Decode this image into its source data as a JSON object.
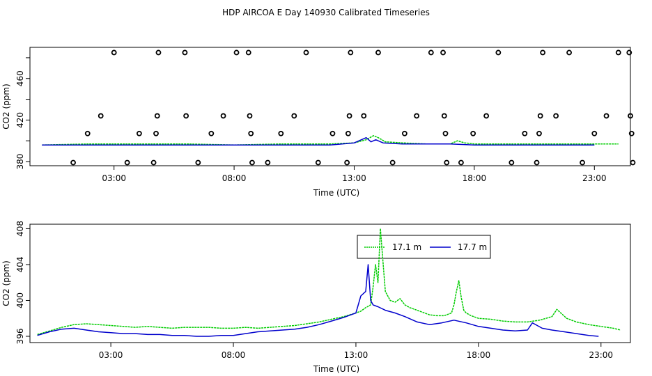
{
  "title": "HDP AIRCOA E  Day 140930  Calibrated Timeseries",
  "colors": {
    "green": "#00cc00",
    "blue": "#0000cc",
    "axis": "#000000"
  },
  "chart_data": [
    {
      "type": "scatter+line",
      "ylabel": "CO2 (ppm)",
      "xlabel": "Time (UTC)",
      "xlim": [
        -0.5,
        24.5
      ],
      "ylim": [
        376,
        490
      ],
      "x_ticks": [
        3,
        8,
        13,
        18,
        23
      ],
      "x_tick_labels": [
        "03:00",
        "08:00",
        "13:00",
        "18:00",
        "23:00"
      ],
      "y_ticks": [
        380,
        420,
        460
      ],
      "y_tick_labels": [
        "380",
        "420",
        "460"
      ],
      "points": [
        {
          "x": 1.3,
          "y": 379
        },
        {
          "x": 1.9,
          "y": 407
        },
        {
          "x": 2.45,
          "y": 424
        },
        {
          "x": 3.0,
          "y": 485
        },
        {
          "x": 3.55,
          "y": 379
        },
        {
          "x": 4.05,
          "y": 407
        },
        {
          "x": 4.65,
          "y": 379
        },
        {
          "x": 4.75,
          "y": 407
        },
        {
          "x": 4.8,
          "y": 424
        },
        {
          "x": 4.85,
          "y": 485
        },
        {
          "x": 5.95,
          "y": 485
        },
        {
          "x": 6.0,
          "y": 424
        },
        {
          "x": 6.5,
          "y": 379
        },
        {
          "x": 7.05,
          "y": 407
        },
        {
          "x": 7.55,
          "y": 424
        },
        {
          "x": 8.1,
          "y": 485
        },
        {
          "x": 8.6,
          "y": 485
        },
        {
          "x": 8.65,
          "y": 424
        },
        {
          "x": 8.7,
          "y": 407
        },
        {
          "x": 8.75,
          "y": 379
        },
        {
          "x": 9.4,
          "y": 379
        },
        {
          "x": 9.95,
          "y": 407
        },
        {
          "x": 10.5,
          "y": 424
        },
        {
          "x": 11.0,
          "y": 485
        },
        {
          "x": 11.5,
          "y": 379
        },
        {
          "x": 12.1,
          "y": 407
        },
        {
          "x": 12.7,
          "y": 379
        },
        {
          "x": 12.75,
          "y": 407
        },
        {
          "x": 12.8,
          "y": 424
        },
        {
          "x": 12.85,
          "y": 485
        },
        {
          "x": 13.4,
          "y": 424
        },
        {
          "x": 14.0,
          "y": 485
        },
        {
          "x": 14.6,
          "y": 379
        },
        {
          "x": 15.1,
          "y": 407
        },
        {
          "x": 15.6,
          "y": 424
        },
        {
          "x": 16.2,
          "y": 485
        },
        {
          "x": 16.7,
          "y": 485
        },
        {
          "x": 16.75,
          "y": 424
        },
        {
          "x": 16.8,
          "y": 407
        },
        {
          "x": 16.85,
          "y": 379
        },
        {
          "x": 17.45,
          "y": 379
        },
        {
          "x": 17.95,
          "y": 407
        },
        {
          "x": 18.5,
          "y": 424
        },
        {
          "x": 19.0,
          "y": 485
        },
        {
          "x": 19.55,
          "y": 379
        },
        {
          "x": 20.1,
          "y": 407
        },
        {
          "x": 20.6,
          "y": 379
        },
        {
          "x": 20.7,
          "y": 407
        },
        {
          "x": 20.75,
          "y": 424
        },
        {
          "x": 20.85,
          "y": 485
        },
        {
          "x": 21.4,
          "y": 424
        },
        {
          "x": 21.95,
          "y": 485
        },
        {
          "x": 22.5,
          "y": 379
        },
        {
          "x": 23.0,
          "y": 407
        },
        {
          "x": 23.5,
          "y": 424
        },
        {
          "x": 24.0,
          "y": 485
        },
        {
          "x": 24.45,
          "y": 485
        },
        {
          "x": 24.5,
          "y": 424
        },
        {
          "x": 24.55,
          "y": 407
        },
        {
          "x": 24.6,
          "y": 379
        }
      ],
      "series": [
        {
          "color": "#00cc00",
          "x": [
            0,
            2,
            4,
            6,
            8,
            10,
            12,
            13,
            13.5,
            13.8,
            14,
            14.3,
            15,
            16,
            17,
            17.3,
            17.6,
            18,
            19,
            20,
            21,
            22,
            23,
            24
          ],
          "y": [
            396,
            397,
            397,
            397,
            396,
            397,
            397,
            398,
            401,
            405,
            403,
            399,
            398,
            397,
            397,
            400,
            398,
            397,
            397,
            397,
            397,
            397,
            397,
            397
          ]
        },
        {
          "color": "#0000cc",
          "x": [
            0,
            2,
            4,
            6,
            8,
            10,
            12,
            13,
            13.5,
            13.7,
            13.9,
            14.2,
            15,
            16,
            17,
            18,
            19,
            20,
            21,
            22,
            23
          ],
          "y": [
            396,
            396,
            396,
            396,
            396,
            396,
            396,
            398,
            403,
            399,
            401,
            398,
            397,
            397,
            397,
            396,
            396,
            396,
            396,
            396,
            396
          ]
        }
      ]
    },
    {
      "type": "line",
      "ylabel": "CO2 (ppm)",
      "xlabel": "Time (UTC)",
      "xlim": [
        -0.3,
        24.2
      ],
      "ylim": [
        395.3,
        408.5
      ],
      "x_ticks": [
        3,
        8,
        13,
        18,
        23
      ],
      "x_tick_labels": [
        "03:00",
        "08:00",
        "13:00",
        "18:00",
        "23:00"
      ],
      "y_ticks": [
        396,
        400,
        404,
        408
      ],
      "y_tick_labels": [
        "396",
        "400",
        "404",
        "408"
      ],
      "legend": {
        "position": "top-center",
        "entries": [
          {
            "label": "17.1 m",
            "color": "#00cc00"
          },
          {
            "label": "17.7 m",
            "color": "#0000cc"
          }
        ]
      },
      "series": [
        {
          "name": "17.1 m",
          "color": "#00cc00",
          "x": [
            0,
            0.5,
            1,
            1.5,
            2,
            2.5,
            3,
            3.5,
            4,
            4.5,
            5,
            5.5,
            6,
            6.5,
            7,
            7.5,
            8,
            8.5,
            9,
            9.5,
            10,
            10.5,
            11,
            11.5,
            12,
            12.5,
            13,
            13.2,
            13.4,
            13.6,
            13.7,
            13.8,
            13.9,
            14.0,
            14.1,
            14.2,
            14.4,
            14.6,
            14.8,
            15.0,
            15.2,
            15.5,
            15.8,
            16.0,
            16.3,
            16.6,
            16.9,
            17.0,
            17.1,
            17.2,
            17.3,
            17.4,
            17.5,
            17.7,
            18.0,
            18.5,
            19.0,
            19.5,
            20.0,
            20.5,
            21.0,
            21.2,
            21.4,
            21.6,
            22.0,
            22.5,
            23.0,
            23.5,
            23.8
          ],
          "y": [
            396.2,
            396.6,
            397.0,
            397.3,
            397.4,
            397.3,
            397.2,
            397.1,
            397.0,
            397.1,
            397.0,
            396.9,
            397.0,
            397.0,
            397.0,
            396.9,
            396.9,
            397.0,
            396.9,
            397.0,
            397.1,
            397.2,
            397.4,
            397.6,
            397.9,
            398.2,
            398.6,
            398.8,
            399.2,
            399.5,
            401.5,
            404.0,
            402.0,
            408.0,
            404.5,
            401.0,
            400.0,
            399.8,
            400.2,
            399.5,
            399.2,
            398.9,
            398.6,
            398.4,
            398.3,
            398.3,
            398.6,
            399.5,
            401.0,
            402.2,
            400.3,
            398.9,
            398.6,
            398.3,
            398.0,
            397.9,
            397.7,
            397.6,
            397.6,
            397.8,
            398.2,
            399.0,
            398.5,
            398.0,
            397.6,
            397.3,
            397.1,
            396.9,
            396.7
          ]
        },
        {
          "name": "17.7 m",
          "color": "#0000cc",
          "x": [
            0,
            0.5,
            1,
            1.5,
            2,
            2.5,
            3,
            3.5,
            4,
            4.5,
            5,
            5.5,
            6,
            6.5,
            7,
            7.5,
            8,
            8.5,
            9,
            9.5,
            10,
            10.5,
            11,
            11.5,
            12,
            12.5,
            13,
            13.2,
            13.4,
            13.5,
            13.6,
            13.7,
            13.9,
            14.2,
            14.6,
            15.0,
            15.5,
            16.0,
            16.5,
            17.0,
            17.5,
            18.0,
            18.5,
            19.0,
            19.5,
            20.0,
            20.2,
            20.4,
            20.6,
            21.0,
            21.5,
            22.0,
            22.5,
            22.9
          ],
          "y": [
            396.1,
            396.5,
            396.8,
            396.9,
            396.7,
            396.5,
            396.4,
            396.3,
            396.3,
            396.2,
            396.2,
            396.1,
            396.1,
            396.0,
            396.0,
            396.1,
            396.1,
            396.3,
            396.5,
            396.6,
            396.7,
            396.8,
            397.0,
            397.3,
            397.7,
            398.1,
            398.6,
            400.5,
            401.0,
            404.0,
            400.0,
            399.5,
            399.3,
            398.9,
            398.6,
            398.2,
            397.6,
            397.3,
            397.5,
            397.8,
            397.5,
            397.1,
            396.9,
            396.7,
            396.6,
            396.7,
            397.5,
            397.2,
            396.9,
            396.7,
            396.5,
            396.3,
            396.1,
            396.0
          ]
        }
      ]
    }
  ]
}
